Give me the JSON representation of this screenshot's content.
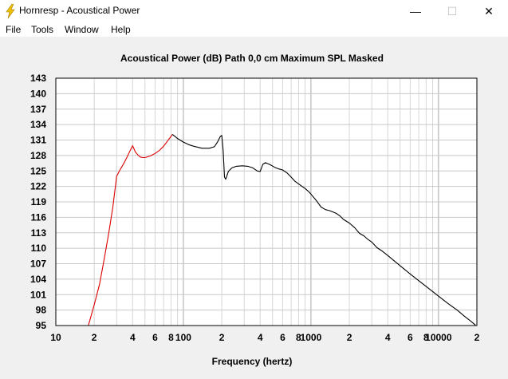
{
  "window": {
    "title": "Hornresp - Acoustical Power",
    "icon": "lightning-icon",
    "minimize_glyph": "—",
    "maximize_glyph": "☐",
    "close_glyph": "✕"
  },
  "menu": {
    "items": [
      {
        "label": "File"
      },
      {
        "label": "Tools"
      },
      {
        "label": "Window"
      },
      {
        "label": "Help"
      }
    ]
  },
  "chart_data": {
    "type": "line",
    "title": "Acoustical Power (dB)   Path 0,0 cm   Maximum SPL   Masked",
    "xlabel": "Frequency (hertz)",
    "ylabel": "",
    "x_scale": "log",
    "xlim": [
      10,
      20000
    ],
    "ylim": [
      95,
      143
    ],
    "grid": true,
    "y_ticks": [
      143,
      140,
      137,
      134,
      131,
      128,
      125,
      122,
      119,
      116,
      113,
      110,
      107,
      104,
      101,
      98,
      95
    ],
    "x_ticks": [
      {
        "value": 10,
        "label": "10"
      },
      {
        "value": 20,
        "label": "2"
      },
      {
        "value": 40,
        "label": "4"
      },
      {
        "value": 60,
        "label": "6"
      },
      {
        "value": 80,
        "label": "8"
      },
      {
        "value": 100,
        "label": "100"
      },
      {
        "value": 200,
        "label": "2"
      },
      {
        "value": 400,
        "label": "4"
      },
      {
        "value": 600,
        "label": "6"
      },
      {
        "value": 800,
        "label": "8"
      },
      {
        "value": 1000,
        "label": "1000"
      },
      {
        "value": 2000,
        "label": "2"
      },
      {
        "value": 4000,
        "label": "4"
      },
      {
        "value": 6000,
        "label": "6"
      },
      {
        "value": 8000,
        "label": "8"
      },
      {
        "value": 10000,
        "label": "10000"
      },
      {
        "value": 20000,
        "label": "2"
      }
    ],
    "series": [
      {
        "color": "#dd0000",
        "points": [
          [
            18,
            95
          ],
          [
            20,
            99
          ],
          [
            22,
            103
          ],
          [
            24,
            108
          ],
          [
            26,
            113
          ],
          [
            28,
            118
          ],
          [
            30,
            124
          ],
          [
            32,
            125.3
          ],
          [
            34,
            126.4
          ],
          [
            36,
            127.6
          ],
          [
            38,
            128.8
          ],
          [
            40,
            129.9
          ],
          [
            42,
            128.7
          ],
          [
            44,
            128.1
          ],
          [
            46,
            127.7
          ],
          [
            48,
            127.6
          ],
          [
            50,
            127.6
          ],
          [
            55,
            127.9
          ],
          [
            60,
            128.4
          ],
          [
            65,
            129.0
          ],
          [
            70,
            129.8
          ],
          [
            75,
            130.8
          ],
          [
            80,
            131.7
          ],
          [
            82,
            132.1
          ]
        ]
      },
      {
        "color": "#000000",
        "points": [
          [
            82,
            132.1
          ],
          [
            90,
            131.3
          ],
          [
            100,
            130.6
          ],
          [
            110,
            130.1
          ],
          [
            120,
            129.8
          ],
          [
            140,
            129.4
          ],
          [
            160,
            129.4
          ],
          [
            175,
            129.7
          ],
          [
            185,
            130.6
          ],
          [
            195,
            131.7
          ],
          [
            200,
            131.9
          ],
          [
            205,
            129.0
          ],
          [
            210,
            123.8
          ],
          [
            215,
            123.4
          ],
          [
            225,
            124.9
          ],
          [
            240,
            125.6
          ],
          [
            260,
            125.9
          ],
          [
            290,
            126.0
          ],
          [
            320,
            125.9
          ],
          [
            350,
            125.6
          ],
          [
            380,
            125.0
          ],
          [
            400,
            124.9
          ],
          [
            420,
            126.3
          ],
          [
            440,
            126.6
          ],
          [
            480,
            126.2
          ],
          [
            520,
            125.7
          ],
          [
            560,
            125.4
          ],
          [
            600,
            125.2
          ],
          [
            650,
            124.6
          ],
          [
            700,
            123.8
          ],
          [
            750,
            123.0
          ],
          [
            800,
            122.5
          ],
          [
            850,
            122.0
          ],
          [
            900,
            121.6
          ],
          [
            950,
            121.1
          ],
          [
            1000,
            120.5
          ],
          [
            1100,
            119.3
          ],
          [
            1200,
            118.0
          ],
          [
            1300,
            117.5
          ],
          [
            1400,
            117.3
          ],
          [
            1500,
            117.0
          ],
          [
            1600,
            116.7
          ],
          [
            1700,
            116.2
          ],
          [
            1800,
            115.6
          ],
          [
            2000,
            114.9
          ],
          [
            2200,
            114.0
          ],
          [
            2400,
            112.9
          ],
          [
            2600,
            112.4
          ],
          [
            2800,
            111.7
          ],
          [
            3000,
            111.2
          ],
          [
            3300,
            110.1
          ],
          [
            3600,
            109.5
          ],
          [
            4000,
            108.6
          ],
          [
            5000,
            106.6
          ],
          [
            6000,
            105.0
          ],
          [
            7000,
            103.7
          ],
          [
            8000,
            102.6
          ],
          [
            10000,
            100.7
          ],
          [
            12000,
            99.2
          ],
          [
            14000,
            98.0
          ],
          [
            16000,
            96.8
          ],
          [
            18000,
            95.8
          ],
          [
            19500,
            95.1
          ]
        ]
      }
    ]
  }
}
